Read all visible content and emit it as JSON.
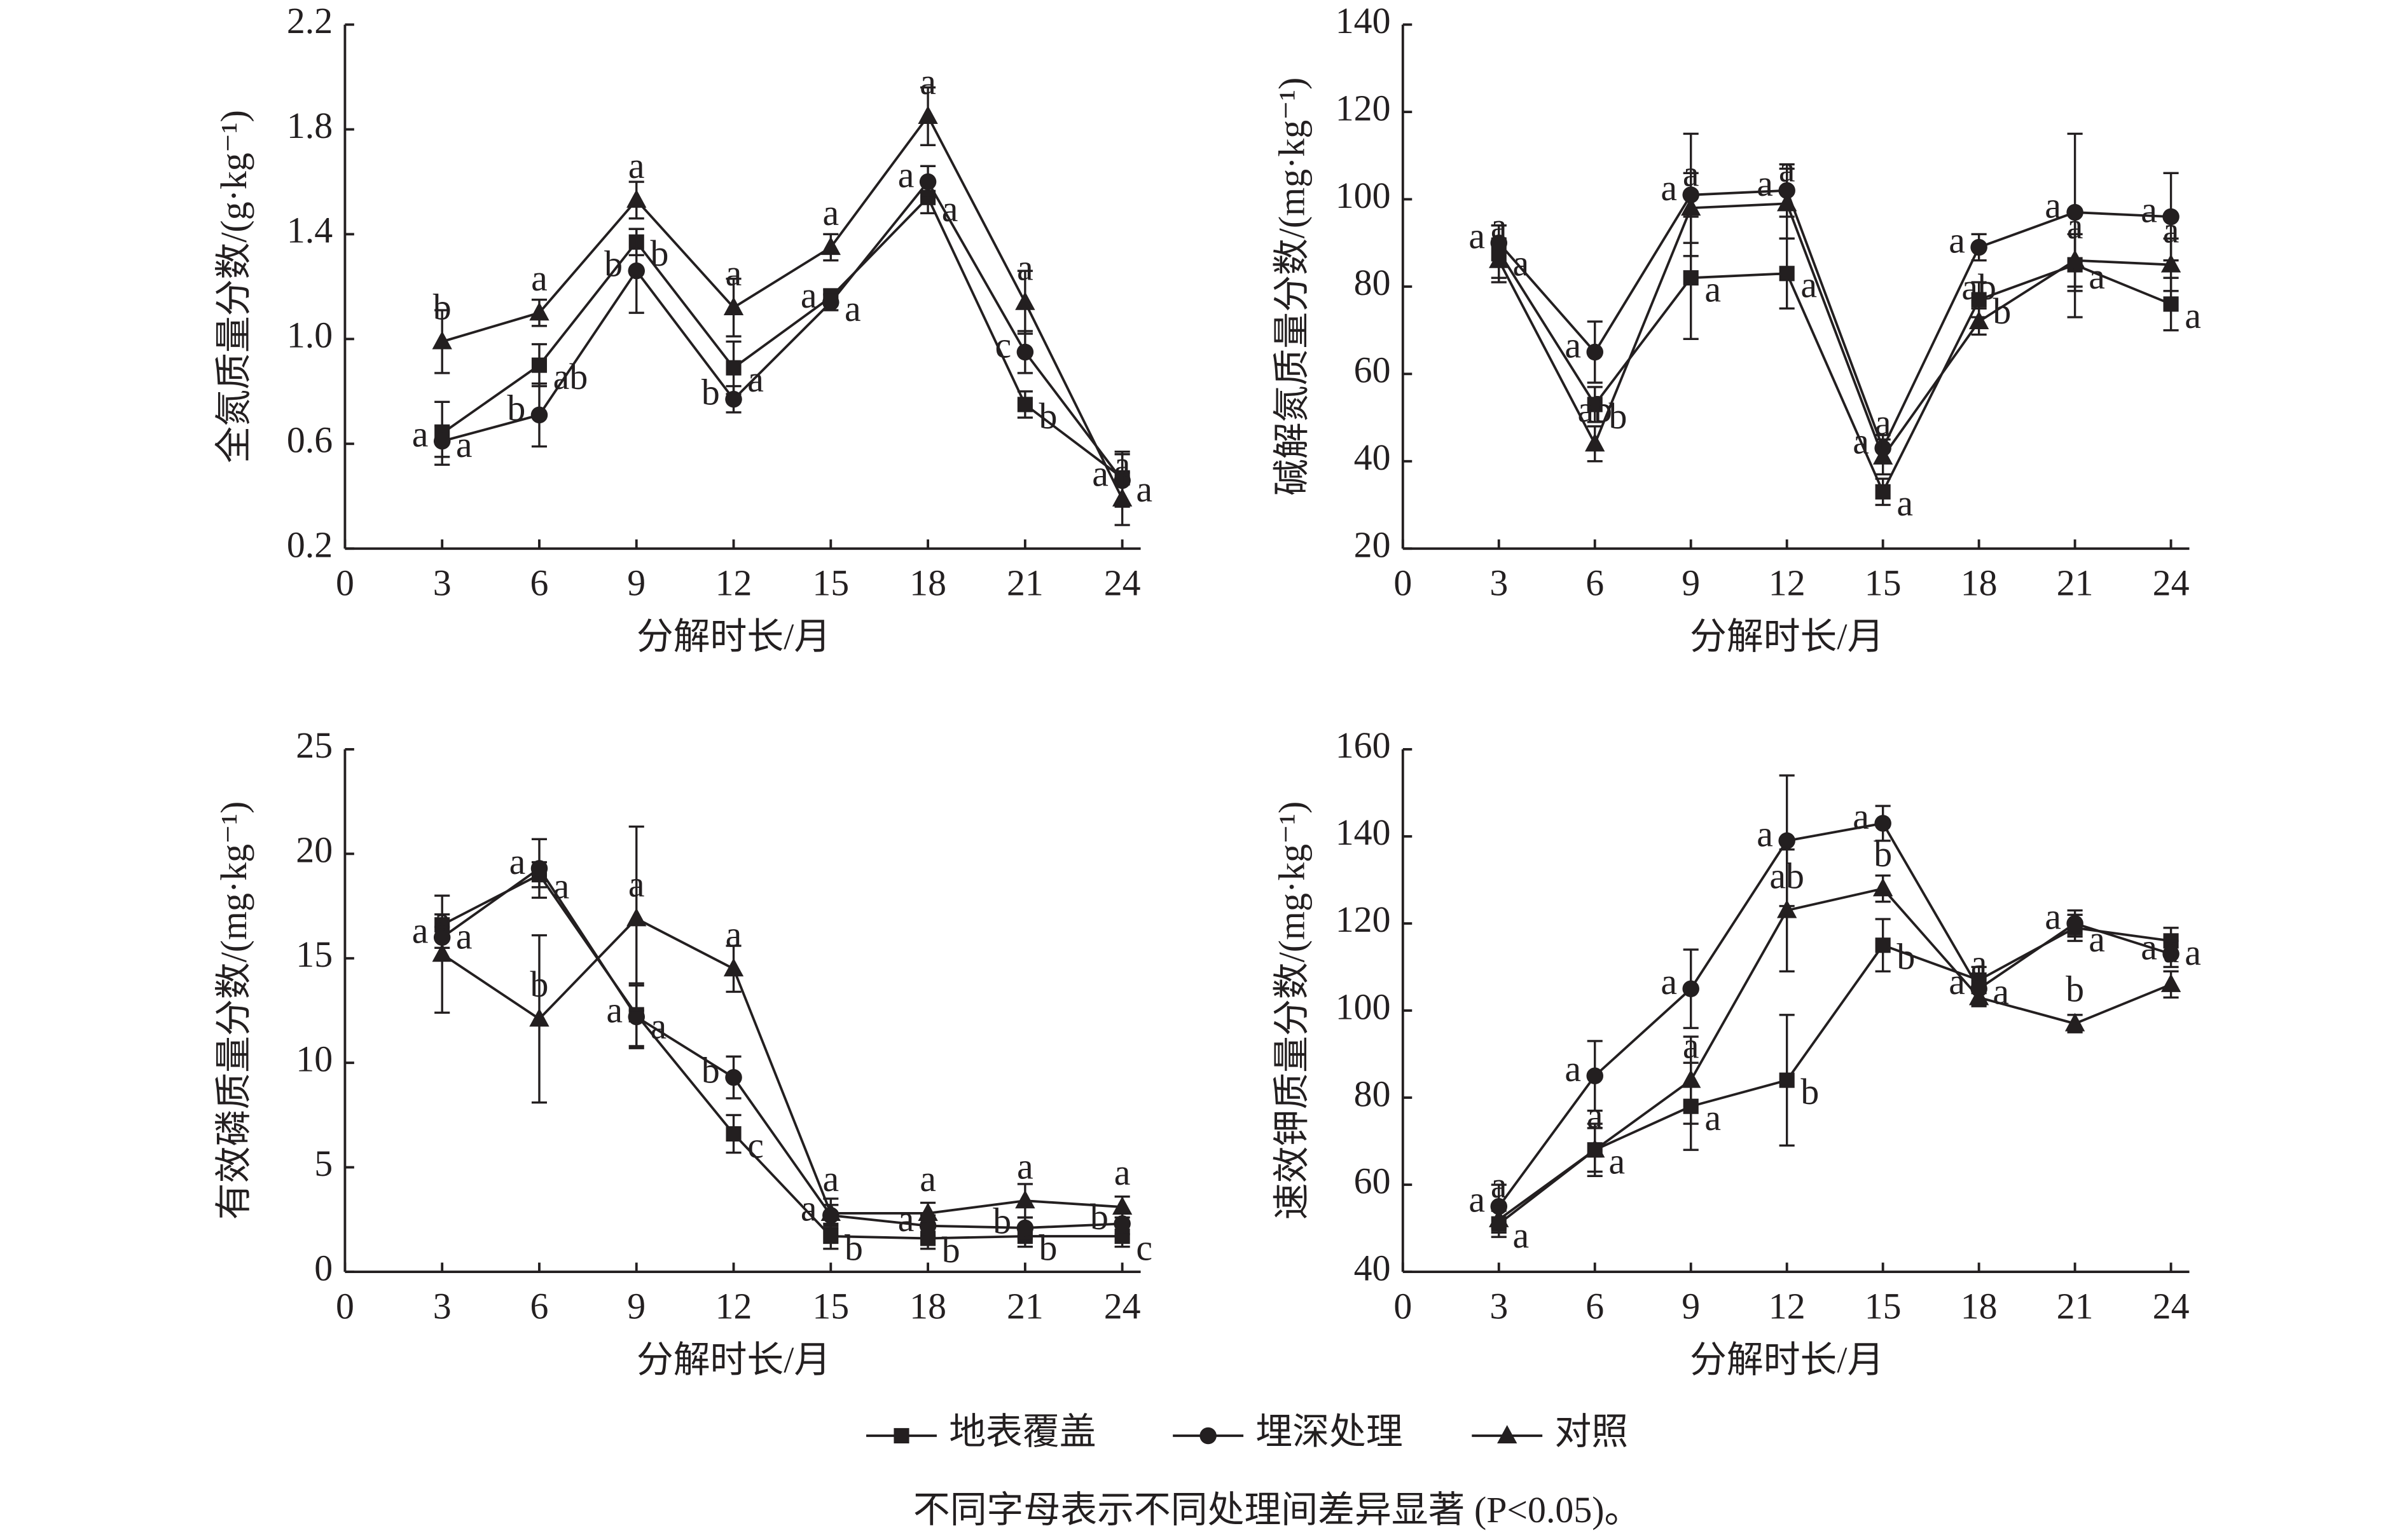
{
  "chart_data": [
    {
      "type": "line",
      "y_label": "全氮质量分数/(g·kg⁻¹)",
      "x_label": "分解时长/月",
      "x": [
        3,
        6,
        9,
        12,
        15,
        18,
        21,
        24
      ],
      "xlim": [
        0,
        24
      ],
      "xticks": [
        0,
        3,
        6,
        9,
        12,
        15,
        18,
        21,
        24
      ],
      "ylim": [
        0.2,
        2.2
      ],
      "yticks": [
        0.2,
        0.6,
        {
          "value": 1.0,
          "label": "1.0"
        },
        1.4,
        1.8,
        2.2
      ],
      "series": [
        {
          "name": "地表覆盖",
          "marker": "square",
          "color": "#231f20",
          "values": [
            0.64,
            0.9,
            1.37,
            0.89,
            1.16,
            1.54,
            0.75,
            0.47
          ],
          "errors": [
            0.12,
            0.08,
            0.05,
            0.1,
            0.03,
            0.06,
            0.05,
            0.1
          ],
          "letters": [
            "a",
            "ab",
            "b",
            "a",
            "a",
            "a",
            "b",
            "a"
          ]
        },
        {
          "name": "埋深处理",
          "marker": "circle",
          "color": "#231f20",
          "values": [
            0.61,
            0.71,
            1.26,
            0.77,
            1.14,
            1.6,
            0.95,
            0.46
          ],
          "errors": [
            0.06,
            0.12,
            0.16,
            0.05,
            0.03,
            0.06,
            0.08,
            0.1
          ],
          "letters": [
            "a",
            "b",
            "b",
            "b",
            "a",
            "a",
            "c",
            "a"
          ]
        },
        {
          "name": "对照",
          "marker": "triangle",
          "color": "#231f20",
          "values": [
            0.99,
            1.1,
            1.53,
            1.12,
            1.35,
            1.85,
            1.14,
            0.39
          ],
          "errors": [
            0.12,
            0.05,
            0.07,
            0.11,
            0.05,
            0.11,
            0.12,
            0.1
          ],
          "letters": [
            "b",
            "a",
            "a",
            "a",
            "a",
            "a",
            "a",
            "a"
          ]
        }
      ]
    },
    {
      "type": "line",
      "y_label": "碱解氮质量分数/(mg·kg⁻¹)",
      "x_label": "分解时长/月",
      "x": [
        3,
        6,
        9,
        12,
        15,
        18,
        21,
        24
      ],
      "xlim": [
        0,
        24
      ],
      "xticks": [
        0,
        3,
        6,
        9,
        12,
        15,
        18,
        21,
        24
      ],
      "ylim": [
        20,
        140
      ],
      "yticks": [
        20,
        40,
        60,
        80,
        100,
        120,
        140
      ],
      "series": [
        {
          "marker": "square",
          "color": "#231f20",
          "values": [
            88,
            53,
            82,
            83,
            33,
            77,
            85,
            76
          ],
          "errors": [
            6,
            4,
            14,
            8,
            3,
            4,
            12,
            6
          ],
          "letters": [
            "a",
            "b",
            "a",
            "a",
            "a",
            "b",
            "a",
            "a"
          ]
        },
        {
          "marker": "circle",
          "color": "#231f20",
          "values": [
            90,
            65,
            101,
            102,
            43,
            89,
            97,
            96
          ],
          "errors": [
            4,
            7,
            14,
            6,
            3,
            3,
            18,
            10
          ],
          "letters": [
            "a",
            "a",
            "a",
            "a",
            "a",
            "a",
            "a",
            "a"
          ]
        },
        {
          "marker": "triangle",
          "color": "#231f20",
          "values": [
            86,
            44,
            98,
            99,
            41,
            72,
            86,
            85
          ],
          "errors": [
            5,
            4,
            8,
            8,
            4,
            3,
            6,
            6
          ],
          "letters": [
            "a",
            "ab",
            "a",
            "a",
            "a",
            "ab",
            "a",
            "a"
          ]
        }
      ]
    },
    {
      "type": "line",
      "y_label": "有效磷质量分数/(mg·kg⁻¹)",
      "x_label": "分解时长/月",
      "x": [
        3,
        6,
        9,
        12,
        15,
        18,
        21,
        24
      ],
      "xlim": [
        0,
        24
      ],
      "xticks": [
        0,
        3,
        6,
        9,
        12,
        15,
        18,
        21,
        24
      ],
      "ylim": [
        0,
        25
      ],
      "yticks": [
        0,
        5,
        10,
        15,
        20,
        25
      ],
      "series": [
        {
          "marker": "square",
          "color": "#231f20",
          "values": [
            16.6,
            19.0,
            12.3,
            6.6,
            1.7,
            1.6,
            1.7,
            1.7
          ],
          "errors": [
            0.5,
            0.6,
            1.5,
            0.9,
            0.6,
            0.5,
            0.5,
            0.5
          ],
          "letters": [
            "a",
            "a",
            "a",
            "c",
            "b",
            "b",
            "b",
            "c"
          ]
        },
        {
          "marker": "circle",
          "color": "#231f20",
          "values": [
            16.0,
            19.3,
            12.2,
            9.3,
            2.7,
            2.2,
            2.1,
            2.3
          ],
          "errors": [
            0.5,
            1.4,
            1.5,
            1.0,
            0.5,
            0.5,
            0.5,
            0.5
          ],
          "letters": [
            "a",
            "a",
            "a",
            "b",
            "a",
            "a",
            "b",
            "b"
          ]
        },
        {
          "marker": "triangle",
          "color": "#231f20",
          "values": [
            15.2,
            12.1,
            16.9,
            14.5,
            2.8,
            2.8,
            3.4,
            3.1
          ],
          "errors": [
            2.8,
            4.0,
            4.4,
            1.1,
            0.7,
            0.5,
            0.8,
            0.5
          ],
          "letters": [
            "a",
            "b",
            "a",
            "a",
            "a",
            "a",
            "a",
            "a"
          ]
        }
      ]
    },
    {
      "type": "line",
      "y_label": "速效钾质量分数/(mg·kg⁻¹)",
      "x_label": "分解时长/月",
      "x": [
        3,
        6,
        9,
        12,
        15,
        18,
        21,
        24
      ],
      "xlim": [
        0,
        24
      ],
      "xticks": [
        0,
        3,
        6,
        9,
        12,
        15,
        18,
        21,
        24
      ],
      "ylim": [
        40,
        160
      ],
      "yticks": [
        40,
        60,
        80,
        100,
        120,
        140,
        160
      ],
      "series": [
        {
          "marker": "square",
          "color": "#231f20",
          "values": [
            51,
            68,
            78,
            84,
            115,
            107,
            119,
            116
          ],
          "errors": [
            3,
            6,
            10,
            15,
            6,
            3,
            3,
            3
          ],
          "letters": [
            "a",
            "a",
            "a",
            "b",
            "b",
            "a",
            "a",
            "a"
          ]
        },
        {
          "marker": "circle",
          "color": "#231f20",
          "values": [
            55,
            85,
            105,
            139,
            143,
            105,
            120,
            113
          ],
          "errors": [
            5,
            8,
            9,
            15,
            4,
            3,
            3,
            3
          ],
          "letters": [
            "a",
            "a",
            "a",
            "a",
            "a",
            "a",
            "a",
            "a"
          ]
        },
        {
          "marker": "triangle",
          "color": "#231f20",
          "values": [
            52,
            68,
            84,
            123,
            128,
            103,
            97,
            106
          ],
          "errors": [
            3,
            5,
            10,
            14,
            3,
            2,
            2,
            3
          ],
          "letters": [
            "a",
            "a",
            "a",
            "ab",
            "b",
            "a",
            "b",
            "a"
          ]
        }
      ]
    }
  ],
  "note": "不同字母表示不同处理间差异显著 (P<0.05)。"
}
